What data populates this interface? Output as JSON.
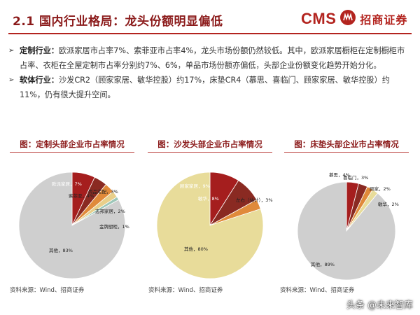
{
  "header": {
    "title": "2.1 国内行业格局：龙头份额明显偏低",
    "logo_text": "CMS",
    "logo_cn": "招商证券"
  },
  "bullets": [
    {
      "label": "定制行业：",
      "text": "欧派家居市占率7%、索菲亚市占率4%，龙头市场份额仍然较低。其中，欧派家居橱柜在定制橱柜市占率、衣柜在全屋定制市占率分别约7%、6%，单品市场份额亦偏低，头部企业份额变化趋势开始分化。"
    },
    {
      "label": "软体行业：",
      "text": "沙发CR2（顾家家居、敏华控股）约17%，床垫CR4（慕思、喜临门、顾家家居、敏华控股）约11%，仍有很大提升空间。"
    }
  ],
  "charts": [
    {
      "title": "图：定制头部企业市占率情况",
      "source": "资料来源：Wind、招商证券"
    },
    {
      "title": "图：沙发头部企业市占率情况",
      "source": "资料来源：Wind、招商证券"
    },
    {
      "title": "图：床垫头部企业市占率情况",
      "source": "资料来源：Wind、招商证券"
    }
  ],
  "chart_data": [
    {
      "type": "pie",
      "title": "图：定制头部企业市占率情况",
      "slices": [
        {
          "label": "欧派家居，7%",
          "value": 7,
          "color": "#a51e1e"
        },
        {
          "label": "索菲亚，4%",
          "value": 4,
          "color": "#8a2a22"
        },
        {
          "label": "尚品宅配，3%",
          "value": 3,
          "color": "#e08a3a"
        },
        {
          "label": "志邦家居，2%",
          "value": 2,
          "color": "#e8cf8a"
        },
        {
          "label": "金牌厨柜，1%",
          "value": 1,
          "color": "#9cc6b8"
        },
        {
          "label": "其他，83%",
          "value": 83,
          "color": "#cfcfcf"
        }
      ]
    },
    {
      "type": "pie",
      "title": "图：沙发头部企业市占率情况",
      "slices": [
        {
          "label": "顾家家居，9%",
          "value": 9,
          "color": "#a51e1e"
        },
        {
          "label": "敏华，8%",
          "value": 8,
          "color": "#8a2a22"
        },
        {
          "label": "左右（估计），3%",
          "value": 3,
          "color": "#e08a3a"
        },
        {
          "label": "其他，80%",
          "value": 80,
          "color": "#e8dc9a"
        }
      ]
    },
    {
      "type": "pie",
      "title": "图：床垫头部企业市占率情况",
      "slices": [
        {
          "label": "慕思，4%",
          "value": 4,
          "color": "#a51e1e"
        },
        {
          "label": "喜临门，3%",
          "value": 3,
          "color": "#8a2a22"
        },
        {
          "label": "顾家，2%",
          "value": 2,
          "color": "#e08a3a"
        },
        {
          "label": "敏华，2%",
          "value": 2,
          "color": "#e8dc9a"
        },
        {
          "label": "其他，89%",
          "value": 89,
          "color": "#cfcfcf"
        }
      ]
    }
  ],
  "watermark": "头条 @未来智库"
}
